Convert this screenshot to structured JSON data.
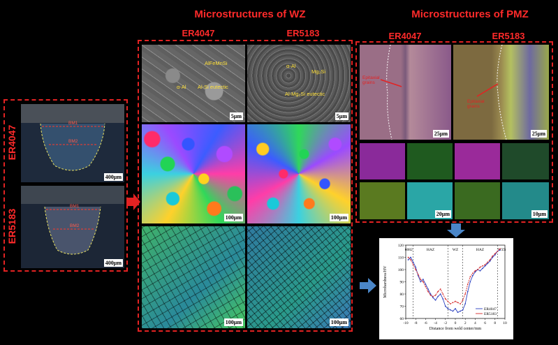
{
  "titles": {
    "wz": "Microstructures of WZ",
    "pmz": "Microstructures of PMZ",
    "wz_col1": "ER4047",
    "wz_col2": "ER5183",
    "pmz_col1": "ER4047",
    "pmz_col2": "ER5183"
  },
  "left": {
    "label_top": "ER4047",
    "label_bottom": "ER5183",
    "scale_top": "400μm",
    "scale_bottom": "400μm",
    "cross_top_a": "BM1",
    "cross_top_b": "BM2",
    "cross_bottom_a": "BM1",
    "cross_bottom_b": "BM2"
  },
  "sem": {
    "left_labels": [
      "AlFeMnSi",
      "α-Al",
      "Al-Si eutectic"
    ],
    "right_labels": [
      "α-Al",
      "Mg₂Si",
      "Al-Mg₂Si eutectic"
    ],
    "scale": "5μm"
  },
  "ebsd_scale": "100μm",
  "pmz": {
    "left_label": "Epitaxial grains",
    "right_label": "Epitaxial grains",
    "scale_om": "25μm",
    "scale_eds_left": "20μm",
    "scale_eds_right": "10μm",
    "eds_colors": [
      "#8a2a9a",
      "#1f5a1f",
      "#9a2a9a",
      "#1f4a2a",
      "#5a7a20",
      "#2aa6a6",
      "#3a6a20",
      "#238a8a"
    ]
  },
  "chart_data": {
    "type": "line",
    "xlabel": "Distance from weld center/mm",
    "ylabel": "Microhardness/HV",
    "xlim": [
      -10,
      10
    ],
    "ylim": [
      60,
      120
    ],
    "x_ticks": [
      -10,
      -8,
      -6,
      -4,
      -2,
      0,
      2,
      4,
      6,
      8,
      10
    ],
    "y_ticks": [
      60,
      70,
      80,
      90,
      100,
      110,
      120
    ],
    "zones": [
      "6082",
      "HAZ",
      "WZ",
      "HAZ",
      "WZS"
    ],
    "series": [
      {
        "name": "ER4047",
        "color": "#2a3fbf",
        "x": [
          -9.5,
          -9,
          -8.5,
          -8,
          -7.5,
          -7,
          -6.5,
          -6,
          -5.5,
          -5,
          -4.5,
          -4,
          -3.5,
          -3,
          -2.5,
          -2,
          -1.5,
          -1,
          -0.5,
          0,
          0.5,
          1,
          1.5,
          2,
          2.5,
          3,
          3.5,
          4,
          4.5,
          5,
          5.5,
          6,
          6.5,
          7,
          7.5,
          8,
          8.5,
          9
        ],
        "y": [
          108,
          110,
          106,
          102,
          95,
          90,
          92,
          88,
          84,
          80,
          77,
          75,
          78,
          80,
          76,
          70,
          68,
          67,
          66,
          68,
          65,
          66,
          67,
          72,
          82,
          90,
          95,
          98,
          100,
          99,
          101,
          103,
          105,
          107,
          110,
          112,
          115,
          116
        ]
      },
      {
        "name": "ER5183",
        "color": "#d62a2a",
        "x": [
          -9.5,
          -9,
          -8.5,
          -8,
          -7.5,
          -7,
          -6.5,
          -6,
          -5.5,
          -5,
          -4.5,
          -4,
          -3.5,
          -3,
          -2.5,
          -2,
          -1.5,
          -1,
          -0.5,
          0,
          0.5,
          1,
          1.5,
          2,
          2.5,
          3,
          3.5,
          4,
          4.5,
          5,
          5.5,
          6,
          6.5,
          7,
          7.5,
          8,
          8.5,
          9
        ],
        "y": [
          110,
          108,
          104,
          100,
          96,
          92,
          90,
          86,
          82,
          79,
          78,
          79,
          82,
          84,
          80,
          76,
          74,
          72,
          73,
          74,
          73,
          72,
          75,
          80,
          88,
          94,
          97,
          99,
          100,
          102,
          103,
          104,
          106,
          108,
          111,
          113,
          115,
          117
        ]
      }
    ]
  }
}
